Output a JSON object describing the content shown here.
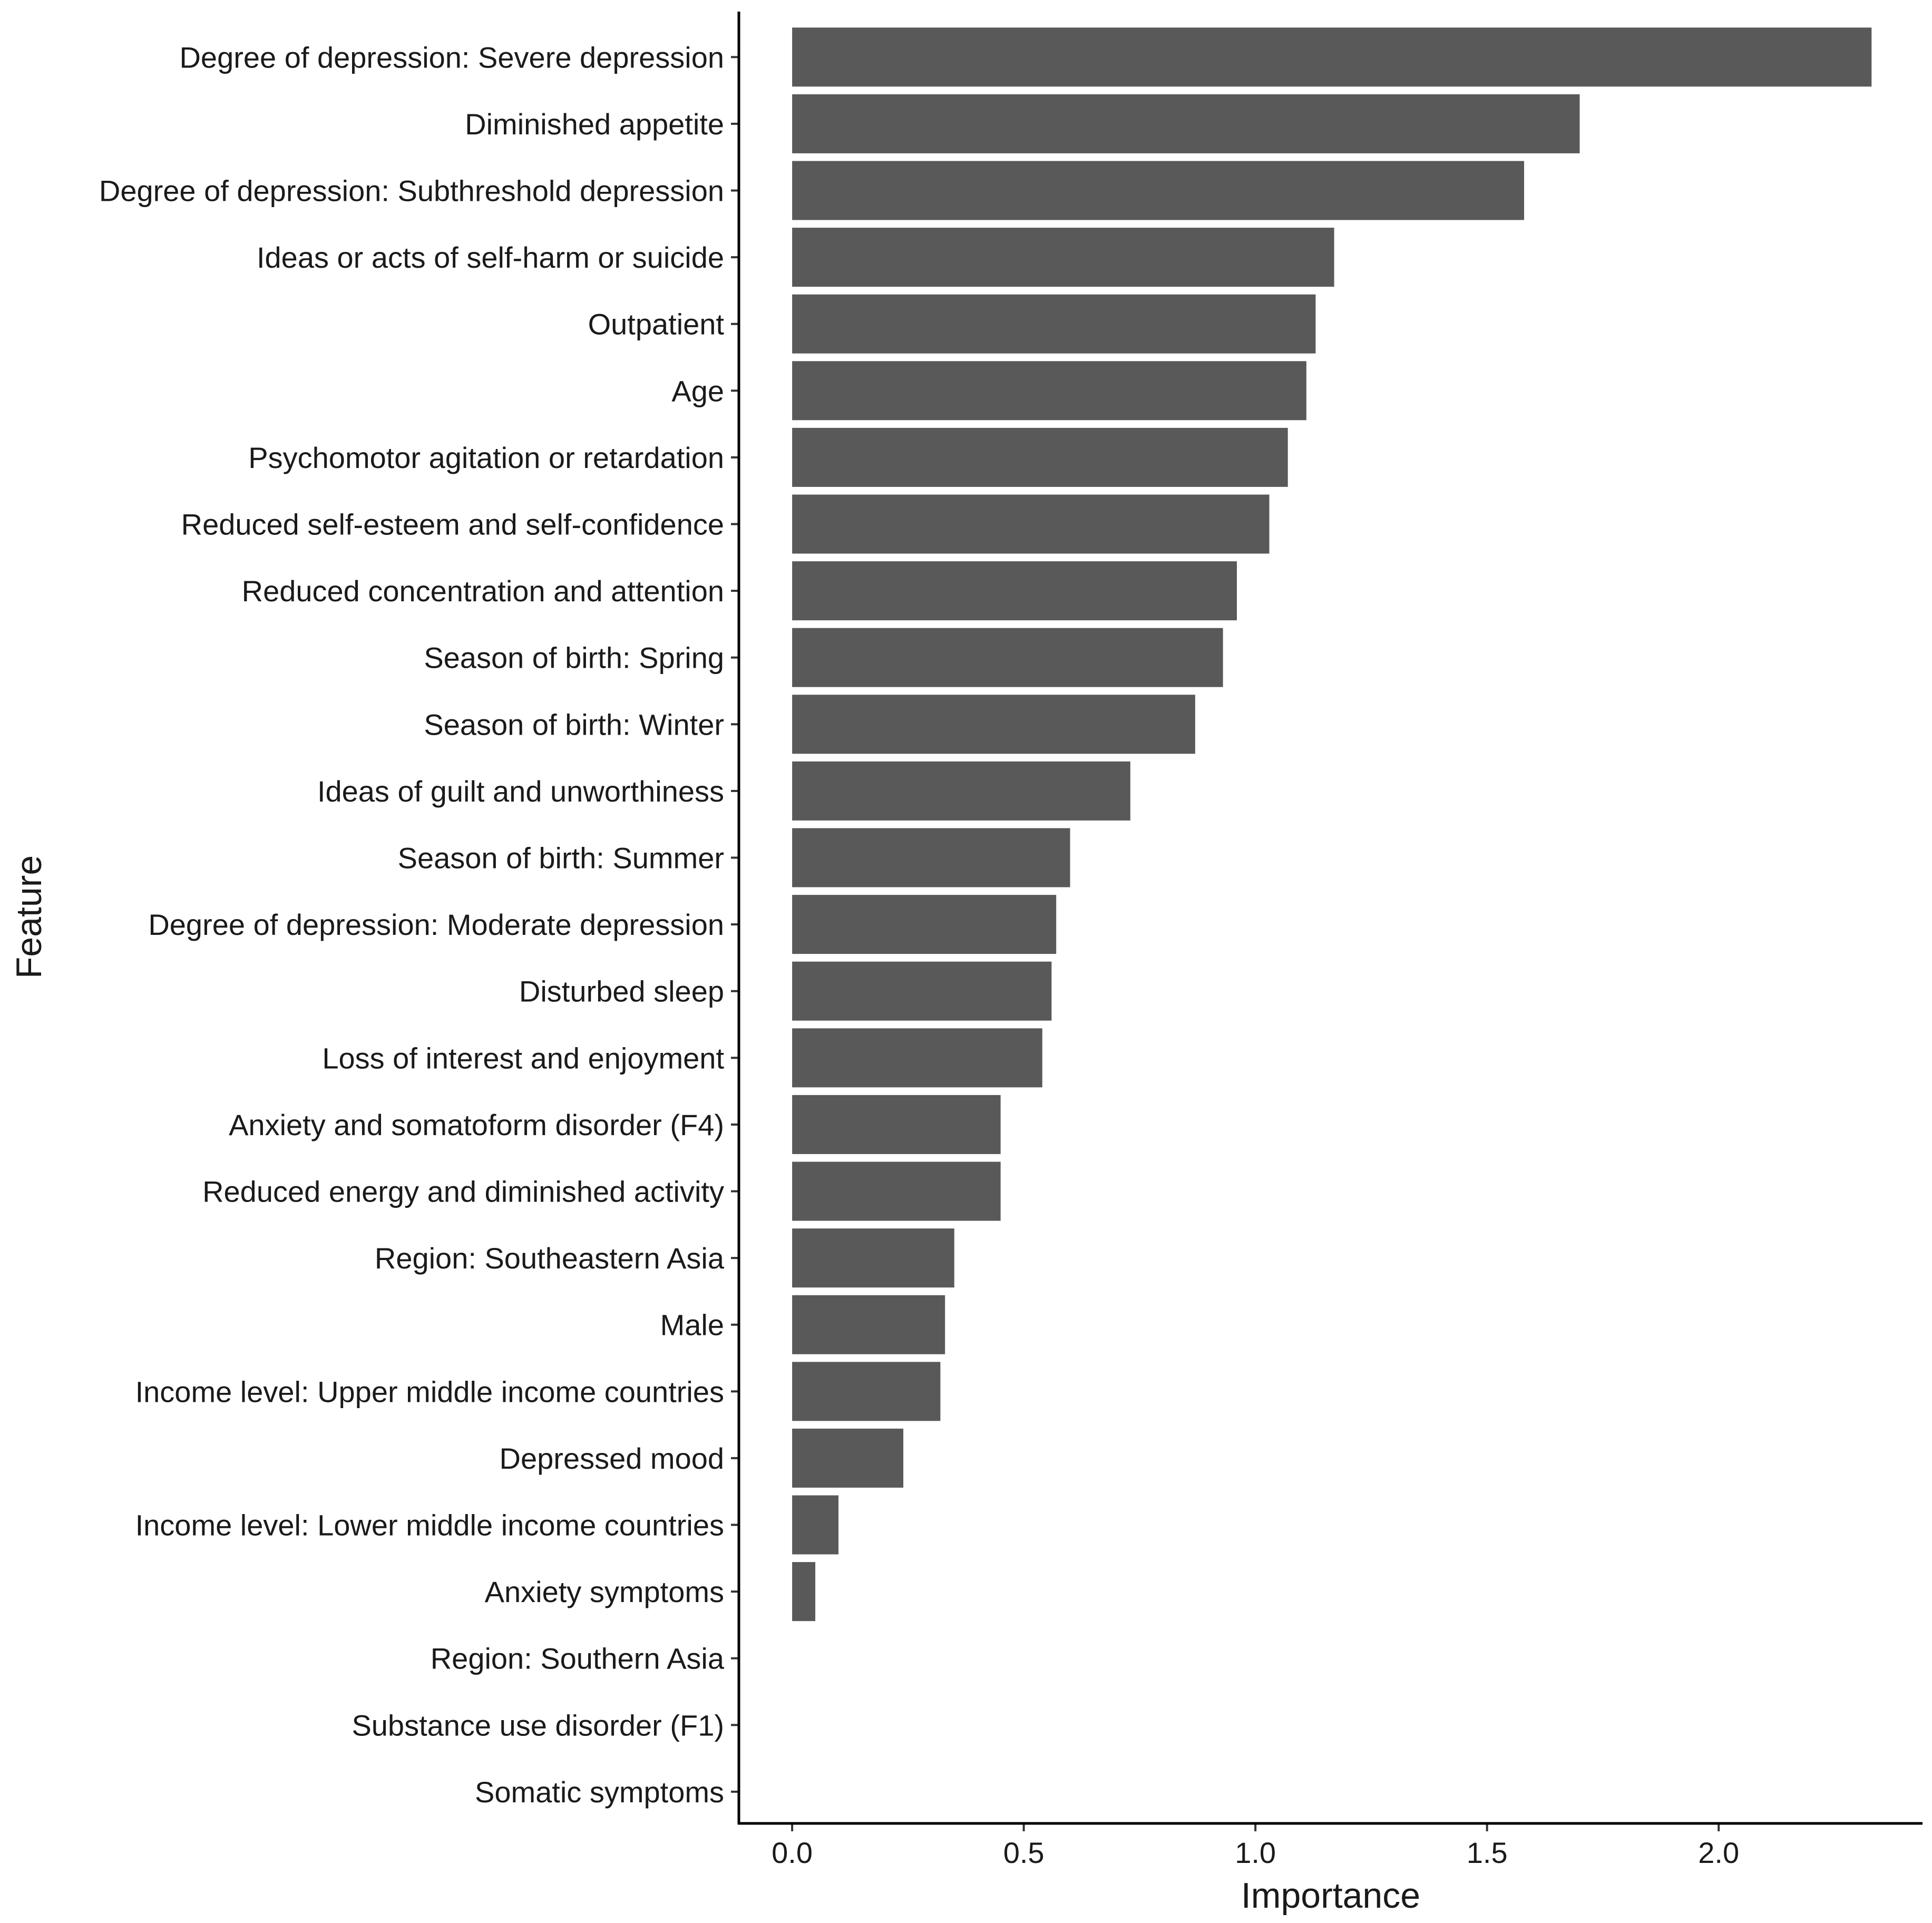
{
  "chart_data": {
    "type": "bar",
    "orientation": "horizontal",
    "title": "",
    "xlabel": "Importance",
    "ylabel": "Feature",
    "xlim": [
      -0.115,
      2.44
    ],
    "xticks": [
      0.0,
      0.5,
      1.0,
      1.5,
      2.0
    ],
    "xtick_labels": [
      "0.0",
      "0.5",
      "1.0",
      "1.5",
      "2.0"
    ],
    "grid": false,
    "legend": "none",
    "bar_color": "#595959",
    "categories": [
      "Degree of depression: Severe depression",
      "Diminished appetite",
      "Degree of depression: Subthreshold depression",
      "Ideas or acts of self-harm or suicide",
      "Outpatient",
      "Age",
      "Psychomotor agitation or retardation",
      "Reduced self-esteem and self-confidence",
      "Reduced concentration and attention",
      "Season of birth: Spring",
      "Season of birth: Winter",
      "Ideas of guilt and unworthiness",
      "Season of birth: Summer",
      "Degree of depression: Moderate depression",
      "Disturbed sleep",
      "Loss of interest and enjoyment",
      "Anxiety and somatoform disorder (F4)",
      "Reduced energy and diminished activity",
      "Region: Southeastern Asia",
      "Male",
      "Income level: Upper middle income countries",
      "Depressed mood",
      "Income level: Lower middle income countries",
      "Anxiety symptoms",
      "Region: Southern Asia",
      "Substance use disorder (F1)",
      "Somatic symptoms"
    ],
    "values": [
      2.33,
      1.7,
      1.58,
      1.17,
      1.13,
      1.11,
      1.07,
      1.03,
      0.96,
      0.93,
      0.87,
      0.73,
      0.6,
      0.57,
      0.56,
      0.54,
      0.45,
      0.45,
      0.35,
      0.33,
      0.32,
      0.24,
      0.1,
      0.05,
      0.0,
      0.0,
      0.0
    ]
  }
}
